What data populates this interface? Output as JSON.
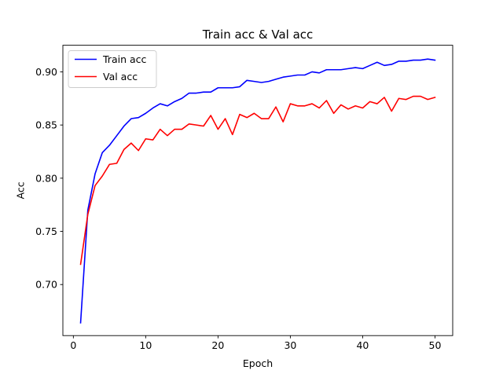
{
  "chart_data": {
    "type": "line",
    "title": "Train acc & Val acc",
    "xlabel": "Epoch",
    "ylabel": "Acc",
    "xlim": [
      -1.45,
      52.45
    ],
    "ylim": [
      0.652,
      0.925
    ],
    "xticks": [
      0,
      10,
      20,
      30,
      40,
      50
    ],
    "yticks": [
      0.7,
      0.75,
      0.8,
      0.85,
      0.9
    ],
    "xtick_labels": [
      "0",
      "10",
      "20",
      "30",
      "40",
      "50"
    ],
    "ytick_labels": [
      "0.70",
      "0.75",
      "0.80",
      "0.85",
      "0.90"
    ],
    "grid": false,
    "legend_position": "top-left",
    "x": [
      1,
      2,
      3,
      4,
      5,
      6,
      7,
      8,
      9,
      10,
      11,
      12,
      13,
      14,
      15,
      16,
      17,
      18,
      19,
      20,
      21,
      22,
      23,
      24,
      25,
      26,
      27,
      28,
      29,
      30,
      31,
      32,
      33,
      34,
      35,
      36,
      37,
      38,
      39,
      40,
      41,
      42,
      43,
      44,
      45,
      46,
      47,
      48,
      49,
      50
    ],
    "series": [
      {
        "name": "Train acc",
        "color": "#0000ff",
        "values": [
          0.664,
          0.77,
          0.804,
          0.824,
          0.831,
          0.84,
          0.849,
          0.856,
          0.857,
          0.861,
          0.866,
          0.87,
          0.868,
          0.872,
          0.875,
          0.88,
          0.88,
          0.881,
          0.881,
          0.885,
          0.885,
          0.885,
          0.886,
          0.892,
          0.891,
          0.89,
          0.891,
          0.893,
          0.895,
          0.896,
          0.897,
          0.897,
          0.9,
          0.899,
          0.902,
          0.902,
          0.902,
          0.903,
          0.904,
          0.903,
          0.906,
          0.909,
          0.906,
          0.907,
          0.91,
          0.91,
          0.911,
          0.911,
          0.912,
          0.911
        ]
      },
      {
        "name": "Val acc",
        "color": "#ff0000",
        "values": [
          0.719,
          0.766,
          0.793,
          0.802,
          0.813,
          0.814,
          0.827,
          0.833,
          0.826,
          0.837,
          0.836,
          0.846,
          0.84,
          0.846,
          0.846,
          0.851,
          0.85,
          0.849,
          0.859,
          0.846,
          0.856,
          0.841,
          0.86,
          0.857,
          0.861,
          0.856,
          0.856,
          0.867,
          0.853,
          0.87,
          0.868,
          0.868,
          0.87,
          0.866,
          0.873,
          0.861,
          0.869,
          0.865,
          0.868,
          0.866,
          0.872,
          0.87,
          0.876,
          0.863,
          0.875,
          0.874,
          0.877,
          0.877,
          0.874,
          0.876
        ]
      }
    ]
  }
}
